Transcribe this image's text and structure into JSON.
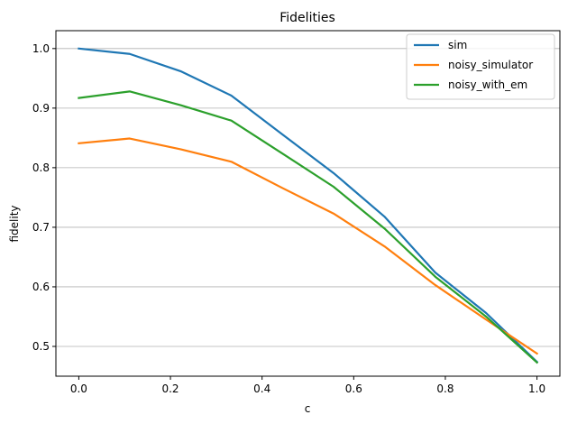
{
  "chart_data": {
    "type": "line",
    "title": "Fidelities",
    "xlabel": "c",
    "ylabel": "fidelity",
    "xlim": [
      -0.05,
      1.05
    ],
    "ylim": [
      0.45,
      1.03
    ],
    "x": [
      0.0,
      0.111,
      0.222,
      0.333,
      0.444,
      0.556,
      0.667,
      0.778,
      0.889,
      1.0
    ],
    "xticks": [
      0.0,
      0.2,
      0.4,
      0.6,
      0.8,
      1.0
    ],
    "xtick_labels": [
      "0.0",
      "0.2",
      "0.4",
      "0.6",
      "0.8",
      "1.0"
    ],
    "yticks": [
      0.5,
      0.6,
      0.7,
      0.8,
      0.9,
      1.0
    ],
    "ytick_labels": [
      "0.5",
      "0.6",
      "0.7",
      "0.8",
      "0.9",
      "1.0"
    ],
    "grid": "y-major",
    "legend_position": "top-right",
    "series": [
      {
        "name": "sim",
        "color": "#1f77b4",
        "values": [
          1.0,
          0.991,
          0.962,
          0.921,
          0.856,
          0.791,
          0.718,
          0.624,
          0.556,
          0.474
        ]
      },
      {
        "name": "noisy_simulator",
        "color": "#ff7f0e",
        "values": [
          0.841,
          0.849,
          0.831,
          0.81,
          0.766,
          0.723,
          0.668,
          0.603,
          0.545,
          0.488
        ]
      },
      {
        "name": "noisy_with_em",
        "color": "#2ca02c",
        "values": [
          0.917,
          0.928,
          0.905,
          0.879,
          0.824,
          0.768,
          0.698,
          0.617,
          0.55,
          0.473
        ]
      }
    ]
  }
}
